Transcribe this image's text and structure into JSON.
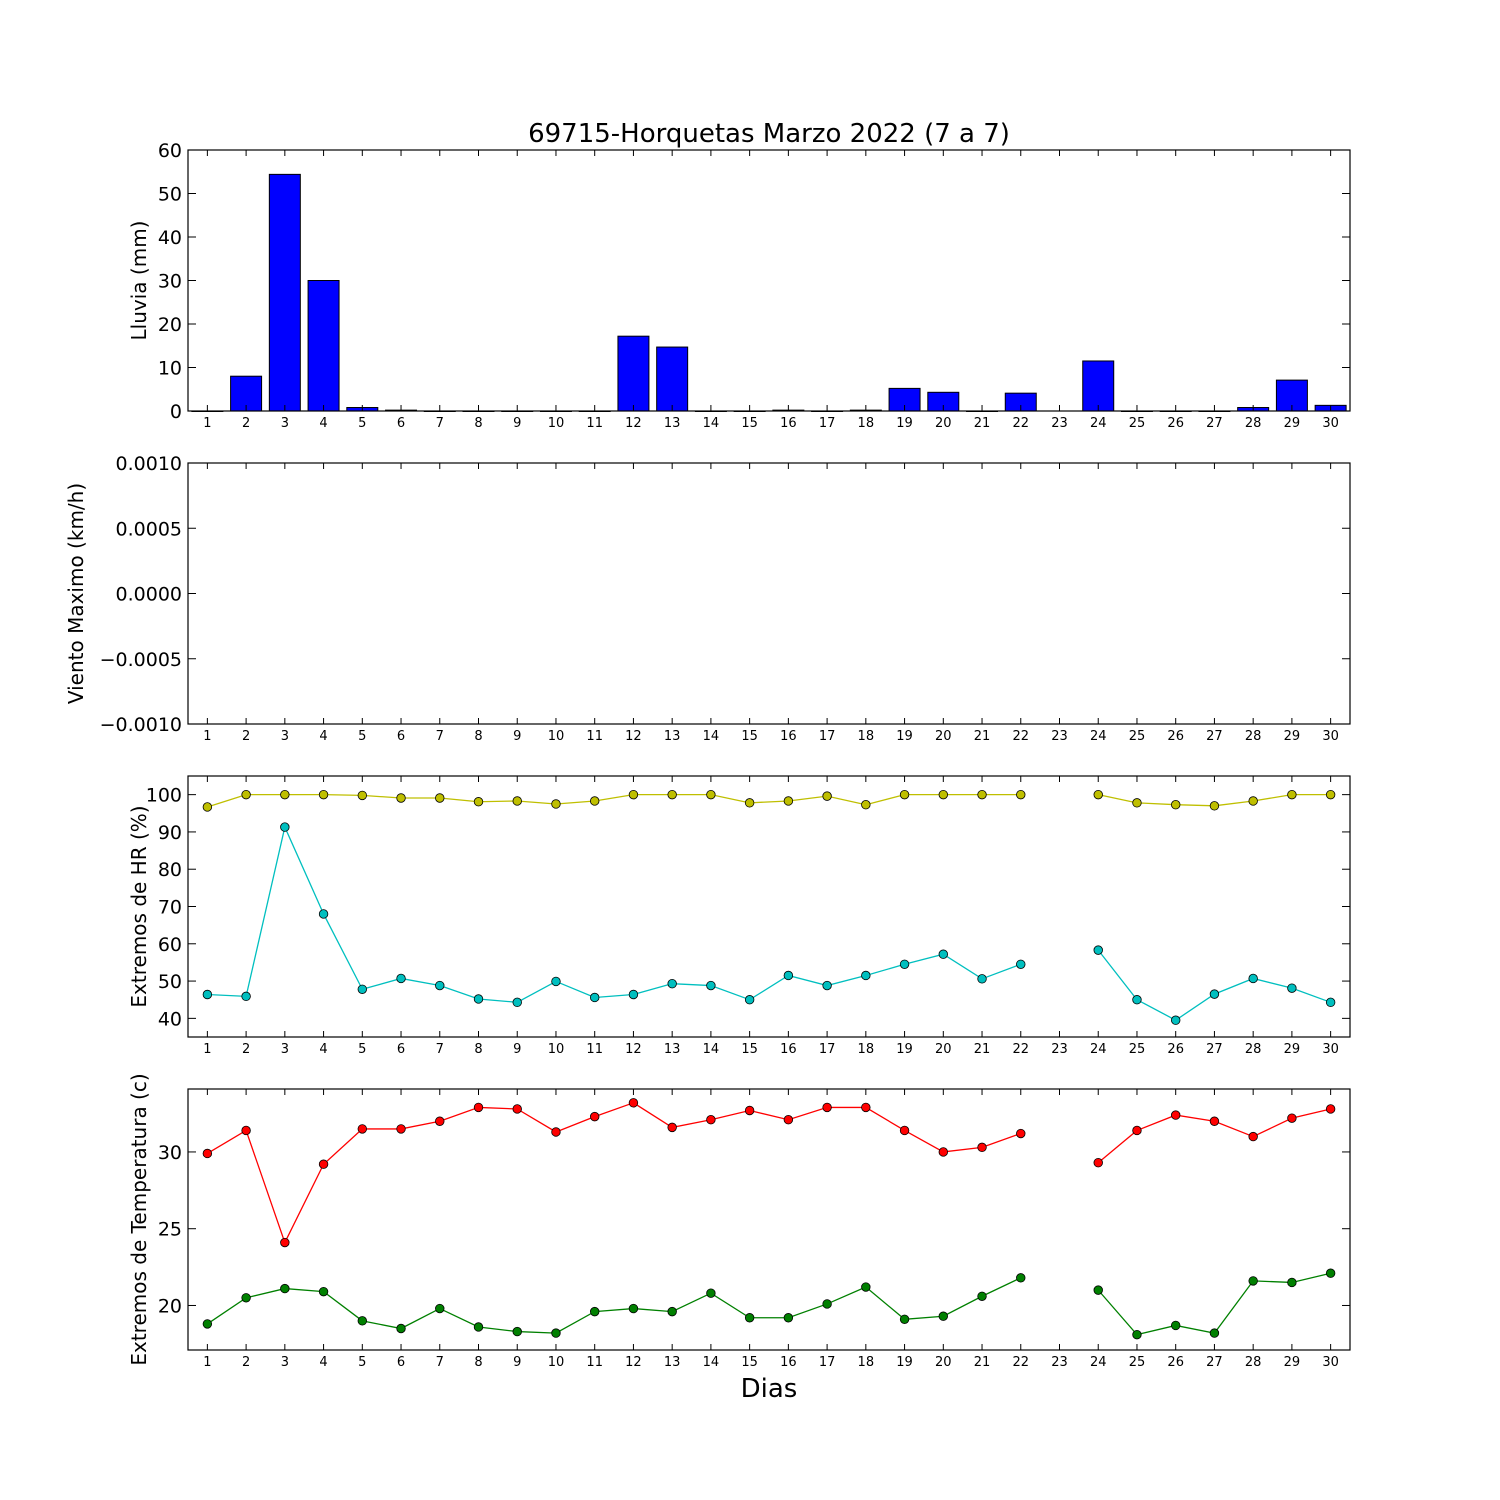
{
  "chart_data": [
    {
      "type": "bar",
      "title": "69715-Horquetas Marzo 2022  (7 a 7)",
      "ylabel": "Lluvia (mm)",
      "categories": [
        1,
        2,
        3,
        4,
        5,
        6,
        7,
        8,
        9,
        10,
        11,
        12,
        13,
        14,
        15,
        16,
        17,
        18,
        19,
        20,
        21,
        22,
        23,
        24,
        25,
        26,
        27,
        28,
        29,
        30
      ],
      "values": [
        0,
        8,
        54.4,
        30,
        0.8,
        0.2,
        0,
        0,
        0,
        0,
        0,
        17.2,
        14.7,
        0,
        0,
        0.2,
        0,
        0.2,
        5.2,
        4.3,
        0,
        4.1,
        null,
        11.5,
        0,
        0,
        0,
        0.8,
        7.1,
        1.3
      ],
      "ylim": [
        0,
        60
      ],
      "yticks": [
        0,
        10,
        20,
        30,
        40,
        50,
        60
      ],
      "ytick_labels": [
        "0",
        "10",
        "20",
        "30",
        "40",
        "50",
        "60"
      ],
      "color": "#0000ff"
    },
    {
      "type": "line",
      "ylabel": "Viento Maximo (km/h)",
      "categories": [
        1,
        2,
        3,
        4,
        5,
        6,
        7,
        8,
        9,
        10,
        11,
        12,
        13,
        14,
        15,
        16,
        17,
        18,
        19,
        20,
        21,
        22,
        23,
        24,
        25,
        26,
        27,
        28,
        29,
        30
      ],
      "series": [],
      "ylim": [
        -0.001,
        0.001
      ],
      "yticks": [
        -0.001,
        -0.0005,
        0,
        0.0005,
        0.001
      ],
      "ytick_labels": [
        "−0.0010",
        "−0.0005",
        "0.0000",
        "0.0005",
        "0.0010"
      ]
    },
    {
      "type": "line",
      "ylabel": "Extremos de HR (%)",
      "categories": [
        1,
        2,
        3,
        4,
        5,
        6,
        7,
        8,
        9,
        10,
        11,
        12,
        13,
        14,
        15,
        16,
        17,
        18,
        19,
        20,
        21,
        22,
        23,
        24,
        25,
        26,
        27,
        28,
        29,
        30
      ],
      "series": [
        {
          "color": "#bfbf00",
          "values": [
            96.7,
            100,
            100,
            100,
            99.8,
            99.1,
            99.1,
            98.1,
            98.3,
            97.5,
            98.3,
            100,
            100,
            100,
            97.8,
            98.3,
            99.6,
            97.3,
            100,
            100,
            100,
            100,
            null,
            100,
            97.8,
            97.3,
            97,
            98.3,
            100,
            100
          ]
        },
        {
          "color": "#00bfbf",
          "values": [
            46.4,
            45.9,
            91.3,
            68,
            47.8,
            50.7,
            48.8,
            45.2,
            44.3,
            49.9,
            45.6,
            46.4,
            49.3,
            48.8,
            45,
            51.5,
            48.8,
            51.5,
            54.5,
            57.2,
            50.6,
            54.5,
            null,
            58.3,
            45,
            39.5,
            46.5,
            50.7,
            48.1,
            44.3
          ]
        }
      ],
      "ylim": [
        35,
        105
      ],
      "yticks": [
        40,
        50,
        60,
        70,
        80,
        90,
        100
      ],
      "ytick_labels": [
        "40",
        "50",
        "60",
        "70",
        "80",
        "90",
        "100"
      ]
    },
    {
      "type": "line",
      "ylabel": "Extremos de Temperatura (c)",
      "xlabel": "Dias",
      "categories": [
        1,
        2,
        3,
        4,
        5,
        6,
        7,
        8,
        9,
        10,
        11,
        12,
        13,
        14,
        15,
        16,
        17,
        18,
        19,
        20,
        21,
        22,
        23,
        24,
        25,
        26,
        27,
        28,
        29,
        30
      ],
      "series": [
        {
          "color": "#ff0000",
          "values": [
            29.9,
            31.4,
            24.1,
            29.2,
            31.5,
            31.5,
            32,
            32.9,
            32.8,
            31.3,
            32.3,
            33.2,
            31.6,
            32.1,
            32.7,
            32.1,
            32.9,
            32.9,
            31.4,
            30,
            30.3,
            31.2,
            null,
            29.3,
            31.4,
            32.4,
            32,
            31,
            32.2,
            32.8
          ]
        },
        {
          "color": "#008000",
          "values": [
            18.8,
            20.5,
            21.1,
            20.9,
            19,
            18.5,
            19.8,
            18.6,
            18.3,
            18.2,
            19.6,
            19.8,
            19.6,
            20.8,
            19.2,
            19.2,
            20.1,
            21.2,
            19.1,
            19.3,
            20.6,
            21.8,
            null,
            21,
            18.1,
            18.7,
            18.2,
            21.6,
            21.5,
            22.1
          ]
        }
      ],
      "ylim": [
        17.1,
        34.1
      ],
      "yticks": [
        20,
        25,
        30
      ],
      "ytick_labels": [
        "20",
        "25",
        "30"
      ]
    }
  ]
}
